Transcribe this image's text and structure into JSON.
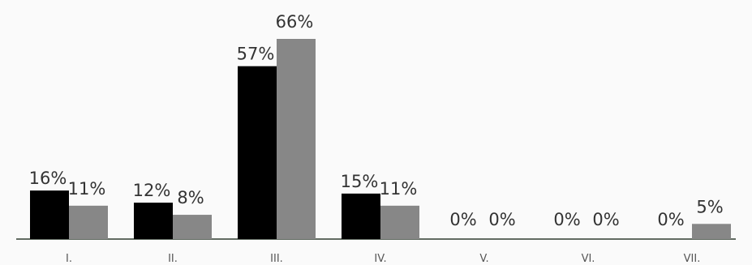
{
  "chart_data": {
    "type": "bar",
    "categories": [
      "I.",
      "II.",
      "III.",
      "IV.",
      "V.",
      "VI.",
      "VII."
    ],
    "series": [
      {
        "values": [
          16,
          12,
          57,
          15,
          0,
          0,
          0
        ],
        "labels": [
          "16%",
          "12%",
          "57%",
          "15%",
          "0%",
          "0%",
          "0%"
        ],
        "color": "#000000"
      },
      {
        "values": [
          11,
          8,
          66,
          11,
          0,
          0,
          5
        ],
        "labels": [
          "11%",
          "8%",
          "66%",
          "11%",
          "0%",
          "0%",
          "5%"
        ],
        "color": "#878787"
      }
    ],
    "ylim": [
      0,
      66
    ],
    "grid": false,
    "axis_color": "#2f3d2f"
  }
}
